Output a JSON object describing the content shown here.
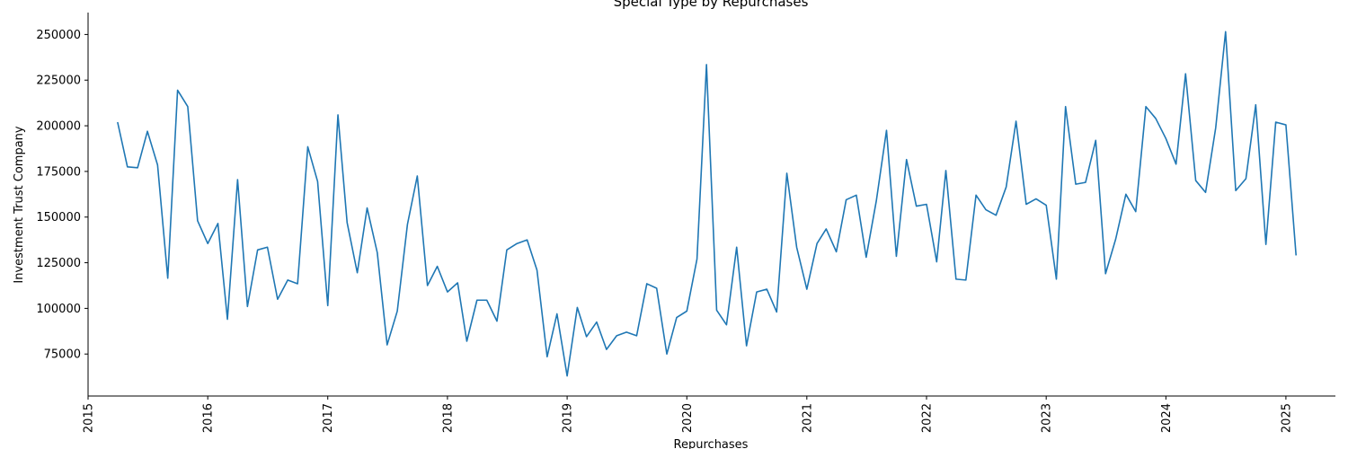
{
  "chart_data": {
    "type": "line",
    "title": "Special Type by Repurchases",
    "xlabel": "Repurchases",
    "ylabel": "Investment Trust Company",
    "xlim": [
      "2015-01-01",
      "2025-06-01"
    ],
    "ylim": [
      52000,
      262000
    ],
    "grid": false,
    "line_color": "#1f77b4",
    "x_tick_labels": [
      "2015",
      "2016",
      "2017",
      "2018",
      "2019",
      "2020",
      "2021",
      "2022",
      "2023",
      "2024",
      "2025"
    ],
    "y_tick_labels": [
      "75000",
      "100000",
      "125000",
      "150000",
      "175000",
      "200000",
      "225000",
      "250000"
    ],
    "y_ticks": [
      75000,
      100000,
      125000,
      150000,
      175000,
      200000,
      225000,
      250000
    ],
    "series": [
      {
        "x": [
          "2015-04-01",
          "2015-05-01",
          "2015-06-01",
          "2015-07-01",
          "2015-08-01",
          "2015-09-01",
          "2015-10-01",
          "2015-11-01",
          "2015-12-01",
          "2016-01-01",
          "2016-02-01",
          "2016-03-01",
          "2016-04-01",
          "2016-05-01",
          "2016-06-01",
          "2016-07-01",
          "2016-08-01",
          "2016-09-01",
          "2016-10-01",
          "2016-11-01",
          "2016-12-01",
          "2017-01-01",
          "2017-02-01",
          "2017-03-01",
          "2017-04-01",
          "2017-05-01",
          "2017-06-01",
          "2017-07-01",
          "2017-08-01",
          "2017-09-01",
          "2017-10-01",
          "2017-11-01",
          "2017-12-01",
          "2018-01-01",
          "2018-02-01",
          "2018-03-01",
          "2018-04-01",
          "2018-05-01",
          "2018-06-01",
          "2018-07-01",
          "2018-08-01",
          "2018-09-01",
          "2018-10-01",
          "2018-11-01",
          "2018-12-01",
          "2019-01-01",
          "2019-02-01",
          "2019-03-01",
          "2019-04-01",
          "2019-05-01",
          "2019-06-01",
          "2019-07-01",
          "2019-08-01",
          "2019-09-01",
          "2019-10-01",
          "2019-11-01",
          "2019-12-01",
          "2020-01-01",
          "2020-02-01",
          "2020-03-01",
          "2020-04-01",
          "2020-05-01",
          "2020-06-01",
          "2020-07-01",
          "2020-08-01",
          "2020-09-01",
          "2020-10-01",
          "2020-11-01",
          "2020-12-01",
          "2021-01-01",
          "2021-02-01",
          "2021-03-01",
          "2021-04-01",
          "2021-05-01",
          "2021-06-01",
          "2021-07-01",
          "2021-08-01",
          "2021-09-01",
          "2021-10-01",
          "2021-11-01",
          "2021-12-01",
          "2022-01-01",
          "2022-02-01",
          "2022-03-01",
          "2022-04-01",
          "2022-05-01",
          "2022-06-01",
          "2022-07-01",
          "2022-08-01",
          "2022-09-01",
          "2022-10-01",
          "2022-11-01",
          "2022-12-01",
          "2023-01-01",
          "2023-02-01",
          "2023-03-01",
          "2023-04-01",
          "2023-05-01",
          "2023-06-01",
          "2023-07-01",
          "2023-08-01",
          "2023-09-01",
          "2023-10-01",
          "2023-11-01",
          "2023-12-01",
          "2024-01-01",
          "2024-02-01",
          "2024-03-01",
          "2024-04-01",
          "2024-05-01",
          "2024-06-01",
          "2024-07-01",
          "2024-08-01",
          "2024-09-01",
          "2024-10-01",
          "2024-11-01",
          "2024-12-01",
          "2025-01-01",
          "2025-02-01"
        ],
        "y": [
          202000,
          177500,
          177000,
          197000,
          178500,
          116500,
          219500,
          210500,
          148000,
          135500,
          146500,
          94000,
          170500,
          101000,
          132000,
          133500,
          105000,
          115500,
          113500,
          188500,
          169500,
          101500,
          206000,
          147000,
          119500,
          155000,
          130500,
          80000,
          98500,
          146000,
          172500,
          112500,
          123000,
          109000,
          114000,
          82000,
          104500,
          104500,
          93000,
          132000,
          135500,
          137500,
          121000,
          73500,
          97000,
          63000,
          100500,
          84500,
          92500,
          77500,
          85000,
          87000,
          85000,
          113500,
          111000,
          75000,
          95000,
          98500,
          127000,
          233500,
          99000,
          91000,
          133500,
          79500,
          109000,
          110500,
          98000,
          174000,
          133500,
          110500,
          135500,
          143500,
          131000,
          159500,
          162000,
          128000,
          159000,
          197500,
          128500,
          181500,
          156000,
          157000,
          125500,
          175500,
          116000,
          115500,
          162000,
          154000,
          151000,
          166500,
          202500,
          157000,
          160000,
          156500,
          116000,
          210500,
          168000,
          169000,
          192000,
          119000,
          138000,
          162500,
          153000,
          210500,
          204000,
          193000,
          179000,
          228500,
          170000,
          163500,
          199000,
          251500,
          164500,
          171000,
          211500,
          135000,
          202000,
          200500,
          129000
        ]
      }
    ]
  }
}
